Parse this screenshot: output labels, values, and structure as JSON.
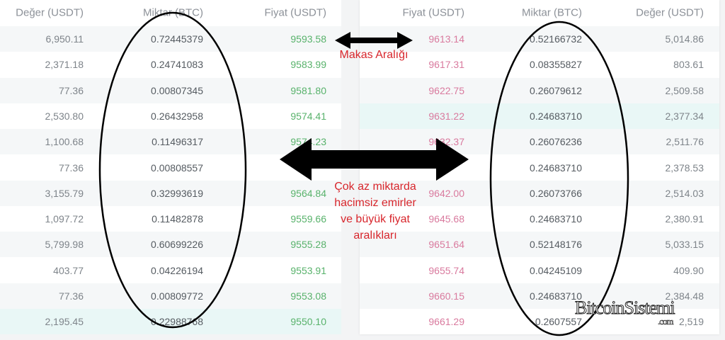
{
  "bids": {
    "headers": {
      "value": "Değer (USDT)",
      "amount": "Miktar (BTC)",
      "price": "Fiyat (USDT)"
    },
    "rows": [
      {
        "value": "6,950.11",
        "amount": "0.72445379",
        "price": "9593.58"
      },
      {
        "value": "2,371.18",
        "amount": "0.24741083",
        "price": "9583.99"
      },
      {
        "value": "77.36",
        "amount": "0.00807345",
        "price": "9581.80"
      },
      {
        "value": "2,530.80",
        "amount": "0.26432958",
        "price": "9574.41"
      },
      {
        "value": "1,100.68",
        "amount": "0.11496317",
        "price": "9574.23"
      },
      {
        "value": "77.36",
        "amount": "0.00808557",
        "price": ""
      },
      {
        "value": "3,155.79",
        "amount": "0.32993619",
        "price": "9564.84"
      },
      {
        "value": "1,097.72",
        "amount": "0.11482878",
        "price": "9559.66"
      },
      {
        "value": "5,799.98",
        "amount": "0.60699226",
        "price": "9555.28"
      },
      {
        "value": "403.77",
        "amount": "0.04226194",
        "price": "9553.91"
      },
      {
        "value": "77.36",
        "amount": "0.00809772",
        "price": "9553.08"
      },
      {
        "value": "2,195.45",
        "amount": "0.22988768",
        "price": "9550.10"
      }
    ]
  },
  "asks": {
    "headers": {
      "price": "Fiyat (USDT)",
      "amount": "Miktar (BTC)",
      "value": "Değer (USDT)"
    },
    "rows": [
      {
        "price": "9613.14",
        "amount": "0.52166732",
        "value": "5,014.86"
      },
      {
        "price": "9617.31",
        "amount": "0.08355827",
        "value": "803.61"
      },
      {
        "price": "9622.75",
        "amount": "0.26079612",
        "value": "2,509.58"
      },
      {
        "price": "9631.22",
        "amount": "0.24683710",
        "value": "2,377.34"
      },
      {
        "price": "9632.37",
        "amount": "0.26076236",
        "value": "2,511.76"
      },
      {
        "price": "",
        "amount": "0.24683710",
        "value": "2,378.53"
      },
      {
        "price": "9642.00",
        "amount": "0.26073766",
        "value": "2,514.03"
      },
      {
        "price": "9645.68",
        "amount": "0.24683710",
        "value": "2,380.91"
      },
      {
        "price": "9651.64",
        "amount": "0.52148176",
        "value": "5,033.15"
      },
      {
        "price": "9655.74",
        "amount": "0.04245109",
        "value": "409.90"
      },
      {
        "price": "9660.15",
        "amount": "0.24683710",
        "value": "2,384.48"
      },
      {
        "price": "9661.29",
        "amount": "0.2607557",
        "value": "2,519"
      }
    ]
  },
  "annotations": {
    "spread": "Makas Aralığı",
    "gaps": [
      "Çok az miktarda",
      "hacimsiz emirler",
      "ve büyük fiyat",
      "aralıkları"
    ]
  },
  "watermark": {
    "name": "BitcoinSistemi",
    "tld": ".com"
  },
  "colors": {
    "buy": "#58b26b",
    "sell": "#d97a9e",
    "annotation": "#d8262c",
    "highlight": "#e9f7f6"
  }
}
